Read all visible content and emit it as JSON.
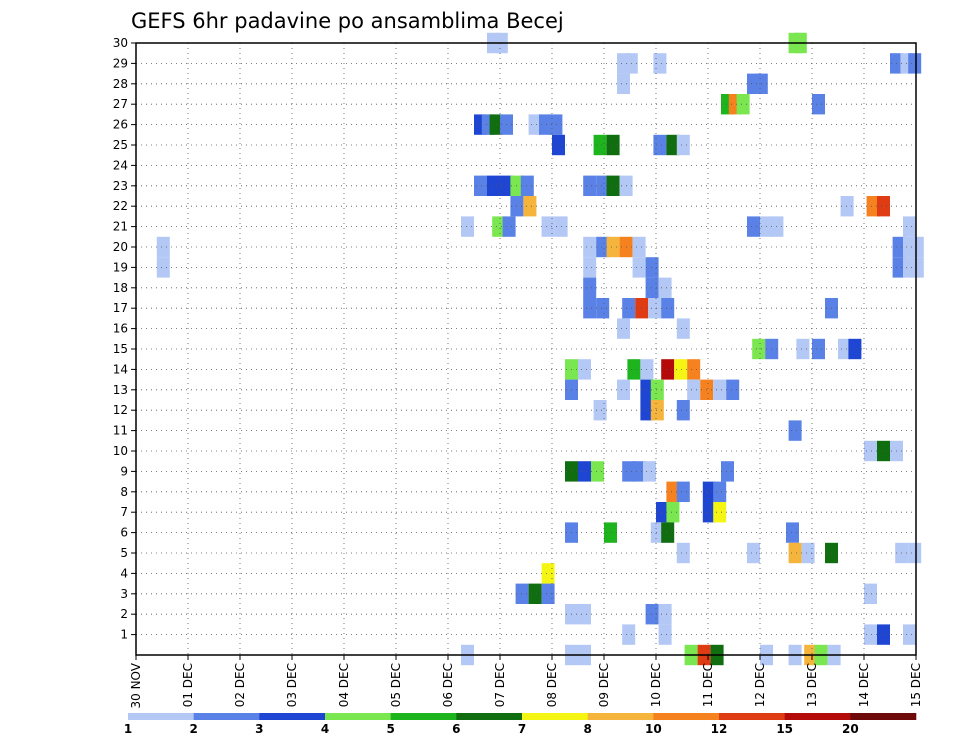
{
  "chart_data": {
    "type": "heatmap",
    "title": "GEFS 6hr padavine po ansamblima Becej",
    "xlabel": "",
    "ylabel": "",
    "x_start_label": "30 NOV",
    "x_tick_labels": [
      "30 NOV",
      "01 DEC",
      "02 DEC",
      "03 DEC",
      "04 DEC",
      "05 DEC",
      "06 DEC",
      "07 DEC",
      "08 DEC",
      "09 DEC",
      "10 DEC",
      "11 DEC",
      "12 DEC",
      "13 DEC",
      "14 DEC",
      "15 DEC"
    ],
    "x_range_days": [
      0,
      15
    ],
    "y_range": [
      0,
      30
    ],
    "y_tick_labels": [
      1,
      2,
      3,
      4,
      5,
      6,
      7,
      8,
      9,
      10,
      11,
      12,
      13,
      14,
      15,
      16,
      17,
      18,
      19,
      20,
      21,
      22,
      23,
      24,
      25,
      26,
      27,
      28,
      29,
      30
    ],
    "grid": true,
    "colorbar": {
      "position": "bottom",
      "colors": [
        "#b4c8f5",
        "#5a82e6",
        "#1e46d2",
        "#7ae650",
        "#1eb41e",
        "#106e10",
        "#f5f514",
        "#f5b43c",
        "#f5821e",
        "#e03c14",
        "#b40a0a",
        "#6e0a0a"
      ],
      "labels": [
        "1",
        "2",
        "3",
        "4",
        "5",
        "6",
        "7",
        "8",
        "10",
        "12",
        "15",
        "20"
      ]
    },
    "cell_width_days": 0.25,
    "cells": [
      [
        6.75,
        30,
        1
      ],
      [
        6.9,
        30,
        1
      ],
      [
        12.55,
        30,
        4
      ],
      [
        12.65,
        30,
        4
      ],
      [
        9.25,
        29,
        1
      ],
      [
        9.4,
        29,
        1
      ],
      [
        9.95,
        29,
        1
      ],
      [
        14.5,
        29,
        2
      ],
      [
        14.7,
        29,
        1
      ],
      [
        14.85,
        29,
        2
      ],
      [
        9.25,
        28,
        1
      ],
      [
        11.75,
        28,
        2
      ],
      [
        11.9,
        28,
        2
      ],
      [
        11.25,
        27,
        5
      ],
      [
        11.4,
        27,
        9
      ],
      [
        11.55,
        27,
        4
      ],
      [
        13.0,
        27,
        2
      ],
      [
        6.5,
        26,
        3
      ],
      [
        6.65,
        26,
        2
      ],
      [
        6.8,
        26,
        6
      ],
      [
        7.0,
        26,
        2
      ],
      [
        7.55,
        26,
        1
      ],
      [
        7.75,
        26,
        2
      ],
      [
        7.95,
        26,
        2
      ],
      [
        8.0,
        25,
        3
      ],
      [
        8.8,
        25,
        5
      ],
      [
        9.05,
        25,
        6
      ],
      [
        9.95,
        25,
        2
      ],
      [
        10.2,
        25,
        6
      ],
      [
        10.4,
        25,
        1
      ],
      [
        6.5,
        23,
        2
      ],
      [
        6.75,
        23,
        3
      ],
      [
        7.0,
        23,
        3
      ],
      [
        7.2,
        23,
        4
      ],
      [
        7.4,
        23,
        2
      ],
      [
        8.6,
        23,
        2
      ],
      [
        8.85,
        23,
        2
      ],
      [
        9.05,
        23,
        6
      ],
      [
        9.3,
        23,
        1
      ],
      [
        7.2,
        22,
        2
      ],
      [
        7.45,
        22,
        8
      ],
      [
        13.55,
        22,
        1
      ],
      [
        14.05,
        22,
        9
      ],
      [
        14.25,
        22,
        10
      ],
      [
        6.25,
        21,
        1
      ],
      [
        6.85,
        21,
        4
      ],
      [
        7.05,
        21,
        2
      ],
      [
        7.8,
        21,
        1
      ],
      [
        8.05,
        21,
        1
      ],
      [
        11.75,
        21,
        2
      ],
      [
        12.0,
        21,
        1
      ],
      [
        12.2,
        21,
        1
      ],
      [
        14.75,
        21,
        1
      ],
      [
        0.4,
        20,
        1
      ],
      [
        8.6,
        20,
        1
      ],
      [
        8.85,
        20,
        2
      ],
      [
        9.05,
        20,
        8
      ],
      [
        9.3,
        20,
        9
      ],
      [
        9.55,
        20,
        1
      ],
      [
        14.55,
        20,
        2
      ],
      [
        14.75,
        20,
        1
      ],
      [
        14.9,
        20,
        1
      ],
      [
        0.4,
        19,
        1
      ],
      [
        8.6,
        19,
        1
      ],
      [
        9.55,
        19,
        1
      ],
      [
        9.8,
        19,
        2
      ],
      [
        14.55,
        19,
        2
      ],
      [
        14.75,
        19,
        1
      ],
      [
        14.9,
        19,
        1
      ],
      [
        9.8,
        18,
        2
      ],
      [
        10.05,
        18,
        1
      ],
      [
        8.6,
        18,
        2
      ],
      [
        8.6,
        17,
        2
      ],
      [
        8.85,
        17,
        2
      ],
      [
        9.35,
        17,
        2
      ],
      [
        9.6,
        17,
        10
      ],
      [
        9.85,
        17,
        1
      ],
      [
        10.1,
        17,
        2
      ],
      [
        13.25,
        17,
        2
      ],
      [
        9.25,
        16,
        1
      ],
      [
        10.4,
        16,
        1
      ],
      [
        11.85,
        15,
        4
      ],
      [
        12.1,
        15,
        2
      ],
      [
        12.7,
        15,
        1
      ],
      [
        13.0,
        15,
        2
      ],
      [
        13.5,
        15,
        1
      ],
      [
        13.7,
        15,
        3
      ],
      [
        8.25,
        14,
        4
      ],
      [
        8.5,
        14,
        1
      ],
      [
        9.45,
        14,
        5
      ],
      [
        9.7,
        14,
        1
      ],
      [
        10.1,
        14,
        11
      ],
      [
        10.35,
        14,
        7
      ],
      [
        10.6,
        14,
        9
      ],
      [
        8.25,
        13,
        2
      ],
      [
        9.25,
        13,
        1
      ],
      [
        9.7,
        13,
        3
      ],
      [
        9.9,
        13,
        4
      ],
      [
        10.6,
        13,
        1
      ],
      [
        10.85,
        13,
        9
      ],
      [
        11.1,
        13,
        1
      ],
      [
        11.35,
        13,
        2
      ],
      [
        8.8,
        12,
        1
      ],
      [
        9.7,
        12,
        3
      ],
      [
        9.9,
        12,
        8
      ],
      [
        10.4,
        12,
        2
      ],
      [
        12.55,
        11,
        2
      ],
      [
        14.0,
        10,
        1
      ],
      [
        14.25,
        10,
        6
      ],
      [
        14.5,
        10,
        1
      ],
      [
        8.25,
        9,
        6
      ],
      [
        8.5,
        9,
        3
      ],
      [
        8.75,
        9,
        4
      ],
      [
        9.35,
        9,
        2
      ],
      [
        9.55,
        9,
        2
      ],
      [
        9.75,
        9,
        1
      ],
      [
        11.25,
        9,
        2
      ],
      [
        10.2,
        8,
        9
      ],
      [
        10.4,
        8,
        2
      ],
      [
        10.9,
        8,
        3
      ],
      [
        11.1,
        8,
        2
      ],
      [
        10.0,
        7,
        3
      ],
      [
        10.2,
        7,
        4
      ],
      [
        10.9,
        7,
        3
      ],
      [
        11.1,
        7,
        7
      ],
      [
        8.25,
        6,
        2
      ],
      [
        9.0,
        6,
        5
      ],
      [
        9.9,
        6,
        1
      ],
      [
        10.1,
        6,
        6
      ],
      [
        12.5,
        6,
        2
      ],
      [
        10.4,
        5,
        1
      ],
      [
        11.75,
        5,
        1
      ],
      [
        12.55,
        5,
        8
      ],
      [
        12.8,
        5,
        1
      ],
      [
        13.25,
        5,
        6
      ],
      [
        14.6,
        5,
        1
      ],
      [
        14.85,
        5,
        1
      ],
      [
        7.8,
        4,
        7
      ],
      [
        7.3,
        3,
        2
      ],
      [
        7.55,
        3,
        6
      ],
      [
        7.8,
        3,
        2
      ],
      [
        14.0,
        3,
        1
      ],
      [
        8.25,
        2,
        1
      ],
      [
        8.5,
        2,
        1
      ],
      [
        9.8,
        2,
        2
      ],
      [
        10.05,
        2,
        1
      ],
      [
        9.35,
        1,
        1
      ],
      [
        10.05,
        1,
        1
      ],
      [
        14.0,
        1,
        1
      ],
      [
        14.25,
        1,
        3
      ],
      [
        14.75,
        1,
        1
      ],
      [
        6.25,
        0,
        1
      ],
      [
        8.25,
        0,
        1
      ],
      [
        8.5,
        0,
        1
      ],
      [
        10.55,
        0,
        4
      ],
      [
        10.8,
        0,
        10
      ],
      [
        11.05,
        0,
        6
      ],
      [
        12.0,
        0,
        1
      ],
      [
        12.55,
        0,
        1
      ],
      [
        12.85,
        0,
        8
      ],
      [
        13.05,
        0,
        4
      ],
      [
        13.3,
        0,
        1
      ]
    ]
  }
}
